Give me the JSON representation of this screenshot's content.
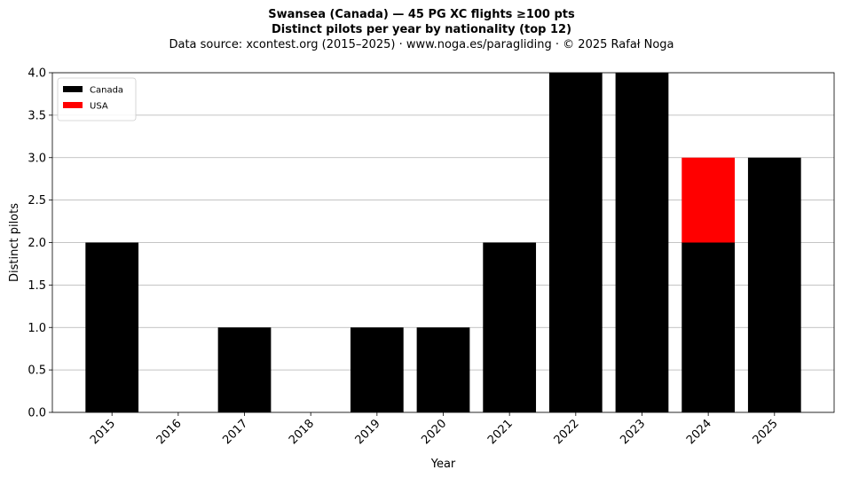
{
  "header": {
    "title": "Swansea (Canada)  —  45 PG XC flights ≥100 pts",
    "subtitle": "Distinct pilots per year by nationality (top 12)",
    "source": "Data source: xcontest.org (2015–2025)  ·  www.noga.es/paragliding  ·  © 2025 Rafał Noga"
  },
  "chart_data": {
    "type": "bar",
    "stacked": true,
    "categories": [
      "2015",
      "2016",
      "2017",
      "2018",
      "2019",
      "2020",
      "2021",
      "2022",
      "2023",
      "2024",
      "2025"
    ],
    "series": [
      {
        "name": "Canada",
        "color": "#000000",
        "values": [
          2,
          0,
          1,
          0,
          1,
          1,
          2,
          4,
          4,
          2,
          3
        ]
      },
      {
        "name": "USA",
        "color": "#ff0000",
        "values": [
          0,
          0,
          0,
          0,
          0,
          0,
          0,
          0,
          0,
          1,
          0
        ]
      }
    ],
    "xlabel": "Year",
    "ylabel": "Distinct pilots",
    "ylim": [
      0,
      4.0
    ],
    "yticks": [
      "0.0",
      "0.5",
      "1.0",
      "1.5",
      "2.0",
      "2.5",
      "3.0",
      "3.5",
      "4.0"
    ],
    "grid": "y",
    "legend_position": "top-left"
  }
}
